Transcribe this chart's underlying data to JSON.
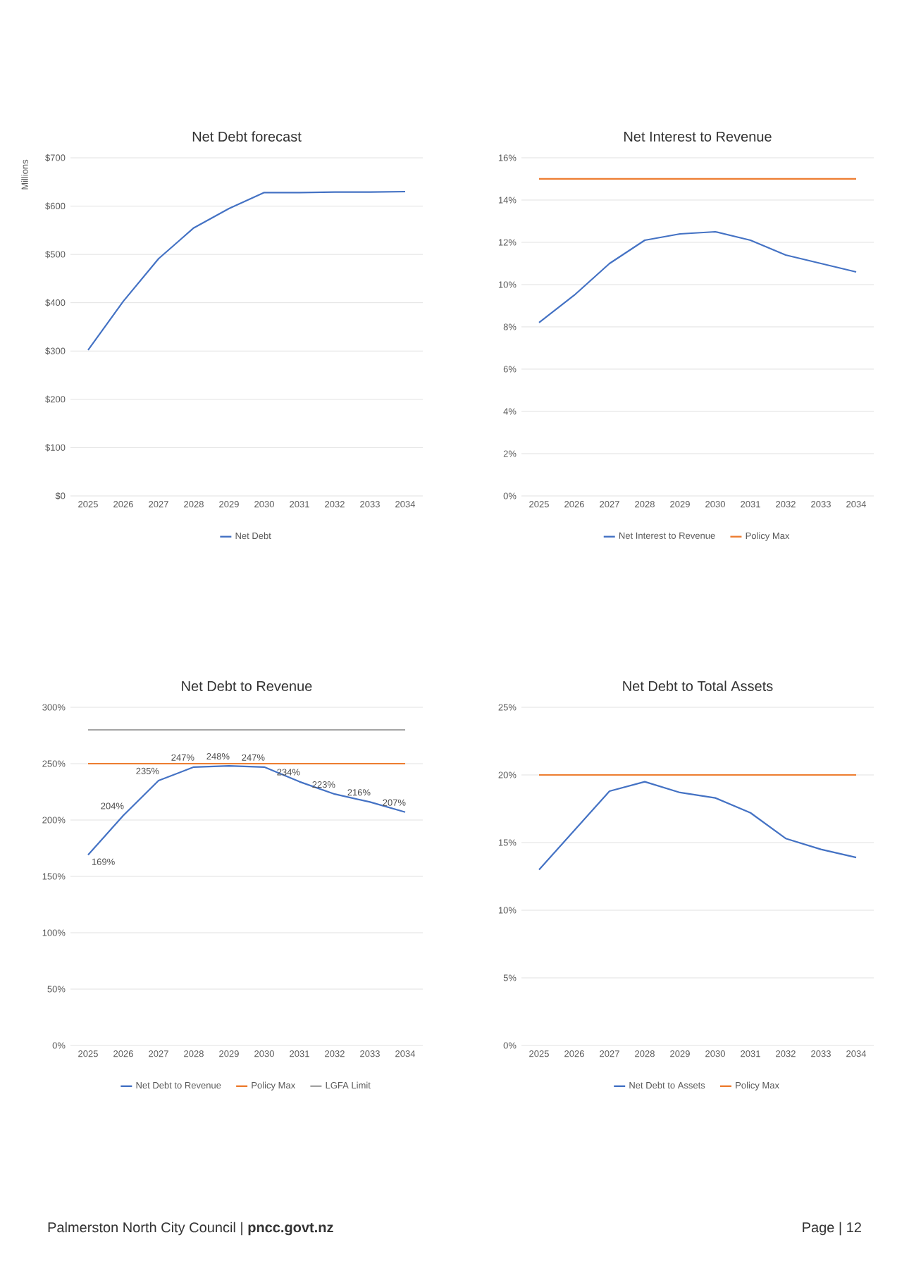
{
  "chart_data": [
    {
      "type": "line",
      "title": "Net Debt forecast",
      "ylabel": "Millions",
      "categories": [
        "2025",
        "2026",
        "2027",
        "2028",
        "2029",
        "2030",
        "2031",
        "2032",
        "2033",
        "2034"
      ],
      "series": [
        {
          "name": "Net Debt",
          "color": "#4472c4",
          "values": [
            302,
            403,
            491,
            555,
            595,
            628,
            628,
            629,
            629,
            630
          ]
        }
      ],
      "ylim": [
        0,
        700
      ],
      "yticks": [
        {
          "value": 0,
          "label": "$0"
        },
        {
          "value": 100,
          "label": "$100"
        },
        {
          "value": 200,
          "label": "$200"
        },
        {
          "value": 300,
          "label": "$300"
        },
        {
          "value": 400,
          "label": "$400"
        },
        {
          "value": 500,
          "label": "$500"
        },
        {
          "value": 600,
          "label": "$600"
        },
        {
          "value": 700,
          "label": "$700"
        }
      ],
      "grid": "y",
      "legend": "bottom"
    },
    {
      "type": "line",
      "title": "Net Debt to Revenue",
      "categories": [
        "2025",
        "2026",
        "2027",
        "2028",
        "2029",
        "2030",
        "2031",
        "2032",
        "2033",
        "2034"
      ],
      "series": [
        {
          "name": "Net Debt to Revenue",
          "color": "#4472c4",
          "values": [
            169,
            204,
            235,
            247,
            248,
            247,
            234,
            223,
            216,
            207
          ],
          "value_labels": [
            "169%",
            "204%",
            "235%",
            "247%",
            "248%",
            "247%",
            "234%",
            "223%",
            "216%",
            "207%"
          ]
        },
        {
          "name": "Policy Max",
          "color": "#ed7d31",
          "values": [
            250,
            250,
            250,
            250,
            250,
            250,
            250,
            250,
            250,
            250
          ]
        },
        {
          "name": "LGFA Limit",
          "color": "#a5a5a5",
          "values": [
            280,
            280,
            280,
            280,
            280,
            280,
            280,
            280,
            280,
            280
          ]
        }
      ],
      "ylim": [
        0,
        300
      ],
      "yticks": [
        {
          "value": 0,
          "label": "0%"
        },
        {
          "value": 50,
          "label": "50%"
        },
        {
          "value": 100,
          "label": "100%"
        },
        {
          "value": 150,
          "label": "150%"
        },
        {
          "value": 200,
          "label": "200%"
        },
        {
          "value": 250,
          "label": "250%"
        },
        {
          "value": 300,
          "label": "300%"
        }
      ],
      "grid": "y",
      "legend": "bottom"
    },
    {
      "type": "line",
      "title": "Net Interest to Revenue",
      "categories": [
        "2025",
        "2026",
        "2027",
        "2028",
        "2029",
        "2030",
        "2031",
        "2032",
        "2033",
        "2034"
      ],
      "series": [
        {
          "name": "Net Interest to Revenue",
          "color": "#4472c4",
          "values": [
            8.2,
            9.5,
            11.0,
            12.1,
            12.4,
            12.5,
            12.1,
            11.4,
            11.0,
            10.6
          ]
        },
        {
          "name": "Policy Max",
          "color": "#ed7d31",
          "values": [
            15,
            15,
            15,
            15,
            15,
            15,
            15,
            15,
            15,
            15
          ]
        }
      ],
      "ylim": [
        0,
        16
      ],
      "yticks": [
        {
          "value": 0,
          "label": "0%"
        },
        {
          "value": 2,
          "label": "2%"
        },
        {
          "value": 4,
          "label": "4%"
        },
        {
          "value": 6,
          "label": "6%"
        },
        {
          "value": 8,
          "label": "8%"
        },
        {
          "value": 10,
          "label": "10%"
        },
        {
          "value": 12,
          "label": "12%"
        },
        {
          "value": 14,
          "label": "14%"
        },
        {
          "value": 16,
          "label": "16%"
        }
      ],
      "grid": "y",
      "legend": "bottom"
    },
    {
      "type": "line",
      "title": "Net Debt to Total Assets",
      "categories": [
        "2025",
        "2026",
        "2027",
        "2028",
        "2029",
        "2030",
        "2031",
        "2032",
        "2033",
        "2034"
      ],
      "series": [
        {
          "name": "Net Debt to Assets",
          "color": "#4472c4",
          "values": [
            13.0,
            15.9,
            18.8,
            19.5,
            18.7,
            18.3,
            17.2,
            15.3,
            14.5,
            13.9
          ]
        },
        {
          "name": "Policy Max",
          "color": "#ed7d31",
          "values": [
            20,
            20,
            20,
            20,
            20,
            20,
            20,
            20,
            20,
            20
          ]
        }
      ],
      "ylim": [
        0,
        25
      ],
      "yticks": [
        {
          "value": 0,
          "label": "0%"
        },
        {
          "value": 5,
          "label": "5%"
        },
        {
          "value": 10,
          "label": "10%"
        },
        {
          "value": 15,
          "label": "15%"
        },
        {
          "value": 20,
          "label": "20%"
        },
        {
          "value": 25,
          "label": "25%"
        }
      ],
      "grid": "y",
      "legend": "bottom",
      "annotations": [
        "Palmerston North City Council | **pncc.govt.nz**",
        "Page | 12"
      ]
    }
  ]
}
